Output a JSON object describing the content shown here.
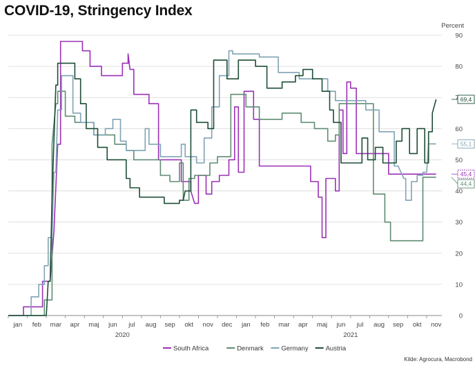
{
  "title": "COVID-19, Stringency Index",
  "source": "Kilde: Agrocura, Macrobond",
  "chart_data": {
    "type": "line",
    "title": "COVID-19, Stringency Index",
    "ylabel": "Percent",
    "ylim": [
      0,
      90
    ],
    "yticks": [
      0,
      10,
      20,
      30,
      40,
      50,
      60,
      70,
      80,
      90
    ],
    "xlim": [
      0,
      22.8
    ],
    "month_labels": [
      "jan",
      "feb",
      "mar",
      "apr",
      "maj",
      "jun",
      "jul",
      "aug",
      "sep",
      "okt",
      "nov",
      "dec",
      "jan",
      "feb",
      "mar",
      "apr",
      "maj",
      "jun",
      "jul",
      "aug",
      "sep",
      "okt",
      "nov"
    ],
    "year_labels": [
      {
        "text": "2020",
        "x": 6
      },
      {
        "text": "2021",
        "x": 18
      }
    ],
    "grid": true,
    "legend_position": "bottom",
    "series": [
      {
        "name": "South Africa",
        "color": "#9b30b6",
        "last_label": "45,4",
        "points": [
          [
            0,
            0
          ],
          [
            0.8,
            0
          ],
          [
            0.8,
            2.8
          ],
          [
            1.8,
            2.8
          ],
          [
            1.8,
            11
          ],
          [
            2.2,
            11
          ],
          [
            2.4,
            27
          ],
          [
            2.6,
            55
          ],
          [
            2.75,
            55
          ],
          [
            2.75,
            88
          ],
          [
            3.9,
            88
          ],
          [
            3.9,
            85
          ],
          [
            4.3,
            85
          ],
          [
            4.3,
            80
          ],
          [
            4.9,
            80
          ],
          [
            4.9,
            77
          ],
          [
            6,
            77
          ],
          [
            6,
            81
          ],
          [
            6.3,
            81
          ],
          [
            6.3,
            84
          ],
          [
            6.4,
            79
          ],
          [
            6.6,
            79
          ],
          [
            6.6,
            71
          ],
          [
            7.4,
            71
          ],
          [
            7.4,
            68
          ],
          [
            7.9,
            68
          ],
          [
            7.9,
            50
          ],
          [
            9.1,
            50
          ],
          [
            9.1,
            43
          ],
          [
            9.6,
            43
          ],
          [
            9.6,
            40
          ],
          [
            9.8,
            36
          ],
          [
            10,
            36
          ],
          [
            10,
            45
          ],
          [
            10.4,
            45
          ],
          [
            10.4,
            39
          ],
          [
            10.7,
            39
          ],
          [
            10.7,
            43
          ],
          [
            11.1,
            43
          ],
          [
            11.1,
            45
          ],
          [
            11.6,
            45
          ],
          [
            11.6,
            50
          ],
          [
            11.9,
            50
          ],
          [
            11.9,
            67
          ],
          [
            12.1,
            67
          ],
          [
            12.1,
            46
          ],
          [
            12.4,
            46
          ],
          [
            12.4,
            72
          ],
          [
            12.9,
            72
          ],
          [
            12.9,
            63
          ],
          [
            13.2,
            63
          ],
          [
            13.2,
            48
          ],
          [
            15.9,
            48
          ],
          [
            15.9,
            43
          ],
          [
            16.3,
            43
          ],
          [
            16.3,
            38
          ],
          [
            16.5,
            38
          ],
          [
            16.5,
            25
          ],
          [
            16.7,
            25
          ],
          [
            16.7,
            44
          ],
          [
            17.2,
            44
          ],
          [
            17.2,
            40
          ],
          [
            17.4,
            40
          ],
          [
            17.4,
            66
          ],
          [
            17.6,
            66
          ],
          [
            17.6,
            52
          ],
          [
            17.8,
            52
          ],
          [
            17.8,
            75
          ],
          [
            18,
            75
          ],
          [
            18,
            73
          ],
          [
            18.3,
            73
          ],
          [
            18.3,
            52
          ],
          [
            20,
            52
          ],
          [
            20,
            45.4
          ],
          [
            22.5,
            45.4
          ]
        ]
      },
      {
        "name": "Denmark",
        "color": "#5e8c72",
        "last_label": "44,4",
        "points": [
          [
            0,
            0
          ],
          [
            1.9,
            0
          ],
          [
            1.9,
            5
          ],
          [
            2.3,
            5
          ],
          [
            2.3,
            55
          ],
          [
            2.5,
            68
          ],
          [
            2.6,
            68
          ],
          [
            2.6,
            72
          ],
          [
            3,
            72
          ],
          [
            3,
            64
          ],
          [
            3.5,
            64
          ],
          [
            3.5,
            62
          ],
          [
            4.5,
            62
          ],
          [
            4.5,
            58
          ],
          [
            5.6,
            58
          ],
          [
            5.6,
            55
          ],
          [
            6.2,
            55
          ],
          [
            6.2,
            53
          ],
          [
            6.6,
            53
          ],
          [
            6.6,
            50
          ],
          [
            8,
            50
          ],
          [
            8,
            45
          ],
          [
            8.5,
            45
          ],
          [
            8.5,
            43
          ],
          [
            9,
            43
          ],
          [
            9,
            49
          ],
          [
            9.2,
            49
          ],
          [
            9.2,
            37
          ],
          [
            9.5,
            37
          ],
          [
            9.5,
            44
          ],
          [
            9.8,
            44
          ],
          [
            9.8,
            45
          ],
          [
            10.6,
            45
          ],
          [
            10.6,
            49
          ],
          [
            11,
            49
          ],
          [
            11,
            51
          ],
          [
            11.7,
            51
          ],
          [
            11.7,
            71
          ],
          [
            12.5,
            71
          ],
          [
            12.5,
            67
          ],
          [
            13.2,
            67
          ],
          [
            13.2,
            63
          ],
          [
            14.4,
            63
          ],
          [
            14.4,
            65
          ],
          [
            15.4,
            65
          ],
          [
            15.4,
            62
          ],
          [
            16.1,
            62
          ],
          [
            16.1,
            60
          ],
          [
            16.8,
            60
          ],
          [
            16.8,
            56
          ],
          [
            17.2,
            56
          ],
          [
            17.2,
            58
          ],
          [
            17.4,
            58
          ],
          [
            17.4,
            68
          ],
          [
            19.2,
            68
          ],
          [
            19.2,
            39
          ],
          [
            19.8,
            39
          ],
          [
            19.8,
            30
          ],
          [
            20.1,
            30
          ],
          [
            20.1,
            24
          ],
          [
            21.8,
            24
          ],
          [
            21.8,
            44.4
          ],
          [
            22.5,
            44.4
          ]
        ]
      },
      {
        "name": "Germany",
        "color": "#7fa2b4",
        "last_label": "55,1",
        "points": [
          [
            0,
            0
          ],
          [
            1.2,
            0
          ],
          [
            1.2,
            6
          ],
          [
            1.6,
            6
          ],
          [
            1.6,
            10
          ],
          [
            1.9,
            10
          ],
          [
            1.9,
            16
          ],
          [
            2.1,
            16
          ],
          [
            2.1,
            25
          ],
          [
            2.3,
            25
          ],
          [
            2.4,
            46
          ],
          [
            2.5,
            46
          ],
          [
            2.6,
            66
          ],
          [
            2.8,
            66
          ],
          [
            2.8,
            77
          ],
          [
            3.4,
            77
          ],
          [
            3.4,
            65
          ],
          [
            3.8,
            65
          ],
          [
            3.8,
            62
          ],
          [
            4.5,
            62
          ],
          [
            4.5,
            58
          ],
          [
            5.1,
            58
          ],
          [
            5.1,
            60
          ],
          [
            5.5,
            60
          ],
          [
            5.5,
            63
          ],
          [
            5.9,
            63
          ],
          [
            5.9,
            56
          ],
          [
            6.2,
            56
          ],
          [
            6.2,
            53
          ],
          [
            7.2,
            53
          ],
          [
            7.2,
            60
          ],
          [
            7.4,
            60
          ],
          [
            7.4,
            55
          ],
          [
            8,
            55
          ],
          [
            8,
            51
          ],
          [
            9.1,
            51
          ],
          [
            9.1,
            55
          ],
          [
            9.3,
            55
          ],
          [
            9.3,
            51
          ],
          [
            9.9,
            51
          ],
          [
            9.9,
            49
          ],
          [
            10.3,
            49
          ],
          [
            10.3,
            57
          ],
          [
            10.7,
            57
          ],
          [
            10.7,
            67
          ],
          [
            11.1,
            67
          ],
          [
            11.1,
            77
          ],
          [
            11.6,
            77
          ],
          [
            11.6,
            85
          ],
          [
            11.8,
            85
          ],
          [
            11.8,
            84
          ],
          [
            13.2,
            84
          ],
          [
            13.2,
            83
          ],
          [
            14.2,
            83
          ],
          [
            14.2,
            78
          ],
          [
            15.3,
            78
          ],
          [
            15.3,
            76
          ],
          [
            16.8,
            76
          ],
          [
            16.8,
            72
          ],
          [
            17.2,
            72
          ],
          [
            17.2,
            69
          ],
          [
            18.8,
            69
          ],
          [
            18.8,
            66
          ],
          [
            19.5,
            66
          ],
          [
            19.5,
            59
          ],
          [
            20.3,
            59
          ],
          [
            20.3,
            48
          ],
          [
            20.5,
            48
          ],
          [
            20.8,
            44
          ],
          [
            20.9,
            44
          ],
          [
            20.9,
            37
          ],
          [
            21.2,
            37
          ],
          [
            21.2,
            43
          ],
          [
            21.5,
            43
          ],
          [
            21.5,
            45
          ],
          [
            21.8,
            45
          ],
          [
            21.8,
            46
          ],
          [
            22,
            46
          ],
          [
            22.1,
            55.1
          ],
          [
            22.5,
            55.1
          ]
        ]
      },
      {
        "name": "Austria",
        "color": "#1c4d35",
        "last_label": "69,4",
        "points": [
          [
            0,
            0
          ],
          [
            2,
            0
          ],
          [
            2.1,
            11
          ],
          [
            2.2,
            11
          ],
          [
            2.3,
            38
          ],
          [
            2.4,
            56
          ],
          [
            2.5,
            74
          ],
          [
            2.6,
            74
          ],
          [
            2.6,
            81
          ],
          [
            3.5,
            81
          ],
          [
            3.5,
            76
          ],
          [
            3.8,
            76
          ],
          [
            3.8,
            68
          ],
          [
            4.1,
            68
          ],
          [
            4.1,
            60
          ],
          [
            4.7,
            60
          ],
          [
            4.7,
            54
          ],
          [
            5.2,
            54
          ],
          [
            5.2,
            50
          ],
          [
            6.2,
            50
          ],
          [
            6.2,
            44
          ],
          [
            6.4,
            44
          ],
          [
            6.4,
            41
          ],
          [
            6.9,
            41
          ],
          [
            6.9,
            38
          ],
          [
            8.2,
            38
          ],
          [
            8.2,
            36
          ],
          [
            9,
            36
          ],
          [
            9,
            37
          ],
          [
            9.2,
            37
          ],
          [
            9.3,
            40
          ],
          [
            9.6,
            40
          ],
          [
            9.6,
            66
          ],
          [
            9.9,
            66
          ],
          [
            9.9,
            62
          ],
          [
            10.5,
            62
          ],
          [
            10.5,
            60
          ],
          [
            10.8,
            60
          ],
          [
            10.8,
            82
          ],
          [
            11.5,
            82
          ],
          [
            11.5,
            76
          ],
          [
            12.1,
            76
          ],
          [
            12.1,
            82
          ],
          [
            13,
            82
          ],
          [
            13,
            80
          ],
          [
            13.6,
            80
          ],
          [
            13.6,
            73
          ],
          [
            14.4,
            73
          ],
          [
            14.4,
            75
          ],
          [
            15.1,
            75
          ],
          [
            15.1,
            77
          ],
          [
            15.5,
            77
          ],
          [
            15.5,
            79
          ],
          [
            16,
            79
          ],
          [
            16,
            76
          ],
          [
            16.5,
            76
          ],
          [
            16.5,
            72
          ],
          [
            16.9,
            72
          ],
          [
            16.9,
            66
          ],
          [
            17.1,
            66
          ],
          [
            17.1,
            62
          ],
          [
            17.5,
            62
          ],
          [
            17.5,
            49
          ],
          [
            18.6,
            49
          ],
          [
            18.6,
            57
          ],
          [
            18.9,
            57
          ],
          [
            18.9,
            50
          ],
          [
            19.3,
            50
          ],
          [
            19.3,
            54
          ],
          [
            19.7,
            54
          ],
          [
            19.7,
            49
          ],
          [
            20.4,
            49
          ],
          [
            20.4,
            56
          ],
          [
            20.7,
            56
          ],
          [
            20.7,
            60
          ],
          [
            21.1,
            60
          ],
          [
            21.1,
            52
          ],
          [
            21.5,
            52
          ],
          [
            21.5,
            60
          ],
          [
            21.9,
            60
          ],
          [
            21.9,
            49
          ],
          [
            22.1,
            49
          ],
          [
            22.1,
            59
          ],
          [
            22.3,
            59
          ],
          [
            22.3,
            65
          ],
          [
            22.5,
            69.4
          ]
        ]
      }
    ]
  }
}
